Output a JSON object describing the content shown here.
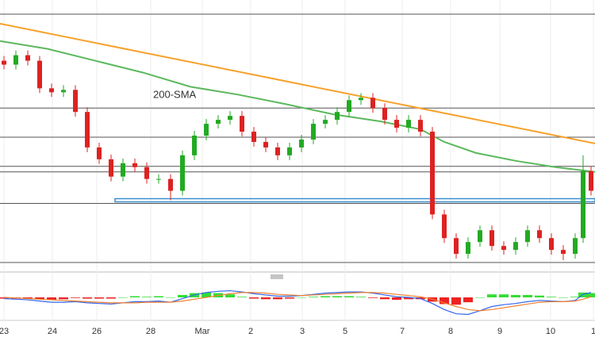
{
  "chart_data": [
    {
      "type": "candlestick",
      "x": [
        5,
        20,
        35,
        50,
        65,
        80,
        95,
        110,
        125,
        140,
        155,
        170,
        185,
        200,
        215,
        230,
        245,
        260,
        275,
        290,
        305,
        320,
        335,
        350,
        365,
        380,
        395,
        410,
        425,
        440,
        455,
        470,
        485,
        500,
        515,
        530,
        545,
        560,
        575,
        590,
        605,
        620,
        635,
        650,
        665,
        680,
        695,
        710,
        725,
        735,
        745
      ],
      "open": [
        265,
        260,
        272,
        265,
        230,
        225,
        228,
        200,
        155,
        140,
        118,
        135,
        130,
        115,
        115,
        100,
        145,
        170,
        185,
        190,
        195,
        175,
        162,
        155,
        145,
        155,
        165,
        185,
        190,
        200,
        215,
        218,
        205,
        190,
        180,
        190,
        175,
        70,
        40,
        20,
        35,
        50,
        30,
        25,
        35,
        50,
        40,
        25,
        20,
        40,
        125
      ],
      "high": [
        271,
        278,
        278,
        271,
        236,
        234,
        234,
        206,
        161,
        146,
        141,
        141,
        136,
        121,
        121,
        151,
        176,
        191,
        196,
        201,
        201,
        181,
        168,
        161,
        161,
        171,
        191,
        196,
        206,
        221,
        224,
        224,
        211,
        196,
        196,
        196,
        181,
        76,
        46,
        41,
        56,
        56,
        36,
        41,
        56,
        56,
        46,
        31,
        46,
        145,
        131
      ],
      "low": [
        254,
        254,
        259,
        224,
        219,
        219,
        194,
        149,
        134,
        112,
        112,
        124,
        109,
        109,
        88,
        94,
        139,
        164,
        179,
        184,
        169,
        156,
        149,
        139,
        139,
        149,
        159,
        179,
        184,
        194,
        209,
        199,
        184,
        174,
        174,
        169,
        64,
        34,
        14,
        14,
        29,
        24,
        19,
        19,
        29,
        34,
        19,
        12,
        14,
        34,
        94
      ],
      "close": [
        260,
        272,
        265,
        230,
        225,
        228,
        200,
        155,
        140,
        118,
        135,
        130,
        115,
        115,
        100,
        145,
        170,
        185,
        190,
        195,
        175,
        162,
        155,
        145,
        155,
        165,
        185,
        190,
        200,
        215,
        218,
        205,
        190,
        180,
        190,
        175,
        70,
        40,
        20,
        35,
        50,
        30,
        25,
        35,
        50,
        40,
        25,
        20,
        40,
        125,
        100
      ],
      "up_color": "#22aa22",
      "down_color": "#dd2222",
      "xlim": [
        0,
        750
      ],
      "xticks": [
        {
          "value": 5,
          "label": "23"
        },
        {
          "value": 66,
          "label": "24"
        },
        {
          "value": 122,
          "label": "26"
        },
        {
          "value": 190,
          "label": "28"
        },
        {
          "value": 255,
          "label": "Mar"
        },
        {
          "value": 316,
          "label": "2"
        },
        {
          "value": 381,
          "label": "3"
        },
        {
          "value": 435,
          "label": "5"
        },
        {
          "value": 507,
          "label": "7"
        },
        {
          "value": 568,
          "label": "8"
        },
        {
          "value": 630,
          "label": "9"
        },
        {
          "value": 694,
          "label": "10"
        },
        {
          "value": 748,
          "label": "1"
        }
      ],
      "ylim": [
        0,
        340
      ],
      "levels": [
        324,
        205,
        168,
        131,
        124,
        84,
        9
      ],
      "zone": {
        "x": [
          145,
          750
        ],
        "values": [
          86,
          90
        ],
        "color": "#3b8fd0"
      },
      "trend": {
        "x": [
          0,
          750
        ],
        "values": [
          312,
          160
        ],
        "color": "#f7a12a"
      },
      "sma": {
        "name": "200-SMA",
        "color": "#5cb85c",
        "x": [
          0,
          60,
          120,
          180,
          240,
          300,
          360,
          420,
          480,
          530,
          560,
          600,
          650,
          700,
          750
        ],
        "values": [
          290,
          280,
          265,
          250,
          232,
          222,
          210,
          197,
          188,
          178,
          162,
          148,
          138,
          130,
          124
        ]
      },
      "grid": true
    },
    {
      "type": "macd",
      "ylim": [
        -30,
        30
      ],
      "series": [
        {
          "color": "#3366ee",
          "values": [
            -2,
            -3,
            -4,
            -6,
            -8,
            -8,
            -7,
            -9,
            -10,
            -11,
            -9,
            -7,
            -7,
            -6,
            -8,
            -2,
            4,
            8,
            10,
            11,
            9,
            6,
            4,
            2,
            2,
            3,
            5,
            7,
            8,
            9,
            9,
            7,
            4,
            1,
            0,
            -2,
            -10,
            -20,
            -27,
            -28,
            -22,
            -15,
            -12,
            -10,
            -7,
            -5,
            -6,
            -7,
            -5,
            5,
            8
          ]
        },
        {
          "color": "#f08030",
          "values": [
            0,
            -1,
            -2,
            -3,
            -4,
            -5,
            -6,
            -7,
            -8,
            -9,
            -9,
            -9,
            -8,
            -8,
            -8,
            -6,
            -3,
            0,
            3,
            6,
            8,
            8,
            7,
            5,
            4,
            3,
            4,
            5,
            6,
            7,
            8,
            8,
            7,
            5,
            3,
            1,
            -3,
            -9,
            -15,
            -20,
            -22,
            -20,
            -17,
            -14,
            -11,
            -8,
            -7,
            -7,
            -6,
            -3,
            1
          ]
        }
      ],
      "histogram": [
        -2,
        -2,
        -2,
        -3,
        -4,
        -3,
        -1,
        -2,
        -2,
        -2,
        0,
        2,
        1,
        2,
        0,
        4,
        7,
        8,
        7,
        5,
        1,
        -2,
        -3,
        -3,
        -2,
        0,
        1,
        2,
        2,
        2,
        1,
        -1,
        -3,
        -4,
        -3,
        -3,
        -7,
        -11,
        -12,
        -8,
        0,
        5,
        5,
        4,
        4,
        3,
        1,
        0,
        1,
        8,
        7
      ],
      "up_color": "#33dd33",
      "down_color": "#ee2222"
    }
  ]
}
